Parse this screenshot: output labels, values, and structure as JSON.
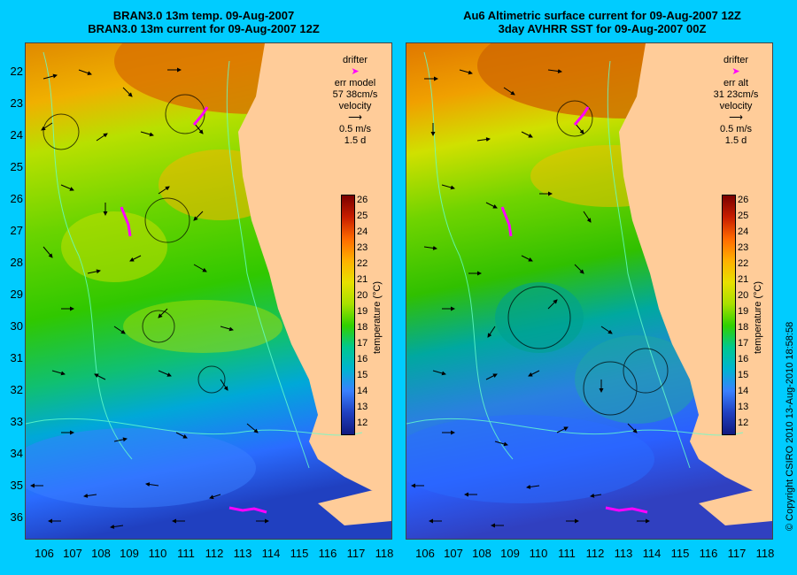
{
  "left_panel": {
    "title_line1": "BRAN3.0 13m temp. 09-Aug-2007",
    "title_line2": "BRAN3.0 13m current for 09-Aug-2007 12Z",
    "drifter_label": "drifter",
    "err_label": "err model",
    "err_value": "57 38cm/s",
    "velocity_label": "velocity",
    "speed_label": "0.5 m/s",
    "duration_label": "1.5 d"
  },
  "right_panel": {
    "title_line1": "Au6 Altimetric surface current for 09-Aug-2007 12Z",
    "title_line2": "3day AVHRR SST for 09-Aug-2007 00Z",
    "drifter_label": "drifter",
    "err_label": "err alt",
    "err_value": "31 23cm/s",
    "velocity_label": "velocity",
    "speed_label": "0.5 m/s",
    "duration_label": "1.5 d"
  },
  "axes": {
    "latitude_ticks": [
      "22",
      "23",
      "24",
      "25",
      "26",
      "27",
      "28",
      "29",
      "30",
      "31",
      "32",
      "33",
      "34",
      "35",
      "36"
    ],
    "longitude_ticks": [
      "106",
      "107",
      "108",
      "109",
      "110",
      "111",
      "112",
      "113",
      "114",
      "115",
      "116",
      "117",
      "118"
    ]
  },
  "colorbar": {
    "label": "temperature (°C)",
    "ticks": [
      "26",
      "25",
      "24",
      "23",
      "22",
      "21",
      "20",
      "19",
      "18",
      "17",
      "16",
      "15",
      "14",
      "13",
      "12"
    ]
  },
  "copyright": "© Copyright CSIRO 2010   13-Aug-2010 18:58:58",
  "colors": {
    "background": "#00ccff",
    "land": "#ffcc99",
    "drifter": "#ff00ff",
    "vectors": "#000000",
    "contours": "#66ffcc"
  }
}
